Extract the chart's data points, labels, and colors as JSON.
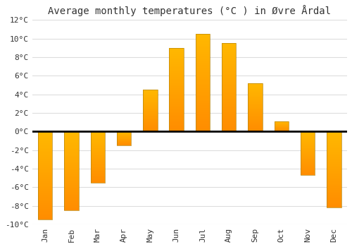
{
  "months": [
    "Jan",
    "Feb",
    "Mar",
    "Apr",
    "May",
    "Jun",
    "Jul",
    "Aug",
    "Sep",
    "Oct",
    "Nov",
    "Dec"
  ],
  "temperatures": [
    -9.5,
    -8.5,
    -5.5,
    -1.5,
    4.5,
    9.0,
    10.5,
    9.5,
    5.2,
    1.1,
    -4.7,
    -8.2
  ],
  "bar_color": "#FFA500",
  "bar_edge_color": "#B8860B",
  "title": "Average monthly temperatures (°C ) in Øvre Årdal",
  "ylim": [
    -10,
    12
  ],
  "yticks": [
    -10,
    -8,
    -6,
    -4,
    -2,
    0,
    2,
    4,
    6,
    8,
    10,
    12
  ],
  "background_color": "#ffffff",
  "plot_bg_color": "#ffffff",
  "grid_color": "#dddddd",
  "title_fontsize": 10,
  "tick_fontsize": 8,
  "bar_width": 0.55
}
